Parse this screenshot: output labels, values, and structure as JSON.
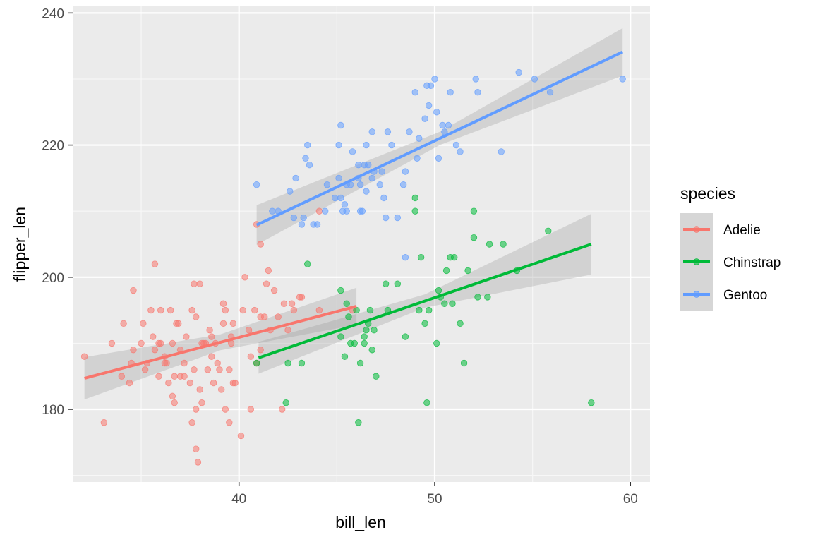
{
  "chart_data": {
    "type": "scatter",
    "xlabel": "bill_len",
    "ylabel": "flipper_len",
    "xlim": [
      31.5,
      61
    ],
    "ylim": [
      169,
      241
    ],
    "x_ticks": [
      40,
      50,
      60
    ],
    "y_ticks": [
      180,
      200,
      220,
      240
    ],
    "grid": true,
    "legend": {
      "title": "species",
      "position": "right"
    },
    "series": [
      {
        "name": "Adelie",
        "color": "#F8766D",
        "fit": {
          "x": [
            32.1,
            46.0
          ],
          "y": [
            184.7,
            195.6
          ],
          "se_band": [
            3.2,
            1.2,
            2.8
          ]
        },
        "points": [
          [
            32.1,
            188
          ],
          [
            33.1,
            178
          ],
          [
            33.5,
            190
          ],
          [
            34.0,
            185
          ],
          [
            34.1,
            193
          ],
          [
            34.4,
            184
          ],
          [
            34.5,
            187
          ],
          [
            34.6,
            198
          ],
          [
            34.6,
            189
          ],
          [
            35.0,
            190
          ],
          [
            35.1,
            193
          ],
          [
            35.2,
            186
          ],
          [
            35.3,
            187
          ],
          [
            35.5,
            195
          ],
          [
            35.6,
            191
          ],
          [
            35.7,
            202
          ],
          [
            35.7,
            189
          ],
          [
            35.9,
            185
          ],
          [
            35.9,
            190
          ],
          [
            36.0,
            195
          ],
          [
            36.0,
            190
          ],
          [
            36.2,
            188
          ],
          [
            36.2,
            187
          ],
          [
            36.3,
            187
          ],
          [
            36.4,
            184
          ],
          [
            36.5,
            195
          ],
          [
            36.6,
            190
          ],
          [
            36.6,
            182
          ],
          [
            36.7,
            181
          ],
          [
            36.7,
            185
          ],
          [
            36.8,
            193
          ],
          [
            36.9,
            193
          ],
          [
            37.0,
            185
          ],
          [
            37.0,
            189
          ],
          [
            37.2,
            185
          ],
          [
            37.2,
            187
          ],
          [
            37.3,
            191
          ],
          [
            37.5,
            184
          ],
          [
            37.6,
            178
          ],
          [
            37.6,
            195
          ],
          [
            37.7,
            199
          ],
          [
            37.7,
            186
          ],
          [
            37.8,
            180
          ],
          [
            37.8,
            174
          ],
          [
            37.8,
            194
          ],
          [
            37.9,
            172
          ],
          [
            38.0,
            199
          ],
          [
            38.0,
            183
          ],
          [
            38.1,
            190
          ],
          [
            38.1,
            181
          ],
          [
            38.2,
            190
          ],
          [
            38.3,
            190
          ],
          [
            38.4,
            186
          ],
          [
            38.5,
            192
          ],
          [
            38.6,
            188
          ],
          [
            38.6,
            191
          ],
          [
            38.7,
            184
          ],
          [
            38.8,
            190
          ],
          [
            38.9,
            187
          ],
          [
            39.0,
            186
          ],
          [
            39.1,
            183
          ],
          [
            39.2,
            196
          ],
          [
            39.2,
            193
          ],
          [
            39.3,
            180
          ],
          [
            39.3,
            195
          ],
          [
            39.5,
            178
          ],
          [
            39.5,
            186
          ],
          [
            39.6,
            190
          ],
          [
            39.6,
            191
          ],
          [
            39.7,
            184
          ],
          [
            39.7,
            193
          ],
          [
            39.8,
            184
          ],
          [
            40.1,
            176
          ],
          [
            40.2,
            195
          ],
          [
            40.3,
            200
          ],
          [
            40.5,
            192
          ],
          [
            40.6,
            180
          ],
          [
            40.6,
            188
          ],
          [
            40.8,
            195
          ],
          [
            40.9,
            187
          ],
          [
            40.9,
            208
          ],
          [
            41.1,
            205
          ],
          [
            41.1,
            189
          ],
          [
            41.1,
            194
          ],
          [
            41.3,
            194
          ],
          [
            41.4,
            199
          ],
          [
            41.5,
            201
          ],
          [
            41.6,
            192
          ],
          [
            41.8,
            198
          ],
          [
            42.0,
            194
          ],
          [
            42.2,
            180
          ],
          [
            42.3,
            196
          ],
          [
            42.5,
            192
          ],
          [
            42.7,
            196
          ],
          [
            42.8,
            195
          ],
          [
            43.1,
            197
          ],
          [
            43.2,
            197
          ],
          [
            44.1,
            210
          ],
          [
            44.1,
            195
          ],
          [
            45.8,
            195
          ]
        ]
      },
      {
        "name": "Chinstrap",
        "color": "#00BA38",
        "fit": {
          "x": [
            41.0,
            58.0
          ],
          "y": [
            187.8,
            205.0
          ],
          "se_band": [
            2.4,
            1.0,
            4.6
          ]
        },
        "points": [
          [
            40.9,
            187
          ],
          [
            42.4,
            181
          ],
          [
            42.5,
            187
          ],
          [
            43.2,
            187
          ],
          [
            43.5,
            202
          ],
          [
            45.2,
            198
          ],
          [
            45.2,
            191
          ],
          [
            45.4,
            188
          ],
          [
            45.5,
            196
          ],
          [
            45.6,
            194
          ],
          [
            45.7,
            190
          ],
          [
            45.9,
            190
          ],
          [
            46.0,
            195
          ],
          [
            46.1,
            178
          ],
          [
            46.2,
            187
          ],
          [
            46.4,
            191
          ],
          [
            46.4,
            190
          ],
          [
            46.5,
            192
          ],
          [
            46.6,
            193
          ],
          [
            46.7,
            195
          ],
          [
            46.8,
            189
          ],
          [
            46.9,
            192
          ],
          [
            47.0,
            185
          ],
          [
            47.5,
            199
          ],
          [
            47.6,
            195
          ],
          [
            48.1,
            199
          ],
          [
            48.5,
            191
          ],
          [
            49.0,
            212
          ],
          [
            49.0,
            210
          ],
          [
            49.2,
            195
          ],
          [
            49.3,
            203
          ],
          [
            49.5,
            193
          ],
          [
            49.6,
            181
          ],
          [
            49.7,
            195
          ],
          [
            50.1,
            190
          ],
          [
            50.2,
            198
          ],
          [
            50.3,
            197
          ],
          [
            50.5,
            196
          ],
          [
            50.6,
            201
          ],
          [
            50.8,
            203
          ],
          [
            50.9,
            196
          ],
          [
            51.0,
            203
          ],
          [
            51.3,
            193
          ],
          [
            51.5,
            187
          ],
          [
            51.7,
            201
          ],
          [
            52.0,
            206
          ],
          [
            52.0,
            210
          ],
          [
            52.2,
            197
          ],
          [
            52.7,
            197
          ],
          [
            52.8,
            205
          ],
          [
            53.5,
            205
          ],
          [
            54.2,
            201
          ],
          [
            55.8,
            207
          ],
          [
            58.0,
            181
          ]
        ]
      },
      {
        "name": "Gentoo",
        "color": "#619CFF",
        "fit": {
          "x": [
            40.9,
            59.6
          ],
          "y": [
            207.9,
            234.1
          ],
          "se_band": [
            3.0,
            1.0,
            3.6
          ]
        },
        "points": [
          [
            40.9,
            214
          ],
          [
            41.7,
            210
          ],
          [
            42.0,
            210
          ],
          [
            42.6,
            213
          ],
          [
            42.8,
            209
          ],
          [
            42.9,
            215
          ],
          [
            43.2,
            208
          ],
          [
            43.3,
            209
          ],
          [
            43.4,
            218
          ],
          [
            43.5,
            220
          ],
          [
            43.6,
            217
          ],
          [
            43.8,
            208
          ],
          [
            44.0,
            208
          ],
          [
            44.4,
            210
          ],
          [
            44.5,
            214
          ],
          [
            44.9,
            212
          ],
          [
            45.1,
            215
          ],
          [
            45.1,
            220
          ],
          [
            45.2,
            223
          ],
          [
            45.2,
            212
          ],
          [
            45.3,
            210
          ],
          [
            45.4,
            211
          ],
          [
            45.5,
            214
          ],
          [
            45.5,
            210
          ],
          [
            45.7,
            214
          ],
          [
            45.8,
            219
          ],
          [
            46.1,
            215
          ],
          [
            46.1,
            217
          ],
          [
            46.2,
            210
          ],
          [
            46.2,
            214
          ],
          [
            46.3,
            210
          ],
          [
            46.4,
            217
          ],
          [
            46.5,
            213
          ],
          [
            46.5,
            220
          ],
          [
            46.6,
            217
          ],
          [
            46.8,
            215
          ],
          [
            46.8,
            222
          ],
          [
            46.9,
            216
          ],
          [
            47.2,
            214
          ],
          [
            47.3,
            216
          ],
          [
            47.4,
            212
          ],
          [
            47.5,
            209
          ],
          [
            47.6,
            222
          ],
          [
            47.8,
            220
          ],
          [
            48.1,
            209
          ],
          [
            48.4,
            214
          ],
          [
            48.5,
            216
          ],
          [
            48.5,
            203
          ],
          [
            48.7,
            222
          ],
          [
            49.0,
            228
          ],
          [
            49.1,
            218
          ],
          [
            49.2,
            221
          ],
          [
            49.5,
            224
          ],
          [
            49.6,
            229
          ],
          [
            49.7,
            226
          ],
          [
            49.8,
            229
          ],
          [
            50.0,
            230
          ],
          [
            50.1,
            225
          ],
          [
            50.2,
            218
          ],
          [
            50.4,
            223
          ],
          [
            50.5,
            222
          ],
          [
            50.7,
            223
          ],
          [
            50.8,
            228
          ],
          [
            51.1,
            220
          ],
          [
            51.3,
            219
          ],
          [
            52.1,
            230
          ],
          [
            52.2,
            228
          ],
          [
            53.4,
            219
          ],
          [
            54.3,
            231
          ],
          [
            55.1,
            230
          ],
          [
            55.9,
            228
          ],
          [
            59.6,
            230
          ]
        ]
      }
    ]
  }
}
